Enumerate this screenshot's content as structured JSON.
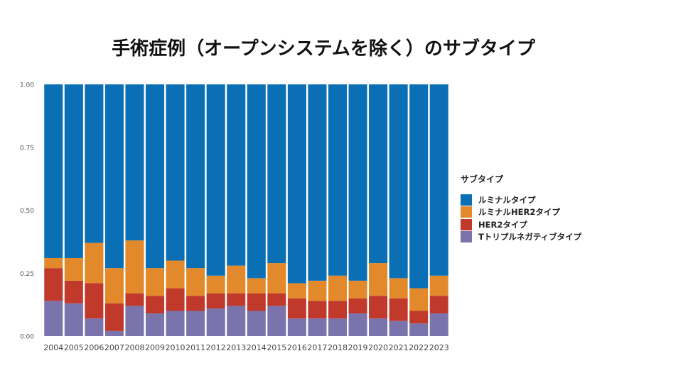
{
  "chart_data": {
    "type": "bar",
    "stacked": true,
    "title": "手術症例（オープンシステムを除く）のサブタイプ",
    "xlabel": "",
    "ylabel": "",
    "ylim": [
      0,
      1
    ],
    "yticks": [
      "0.00",
      "0.25",
      "0.50",
      "0.75",
      "1.00"
    ],
    "grid": false,
    "legend_position": "right",
    "legend_title": "サブタイプ",
    "categories": [
      "2004",
      "2005",
      "2006",
      "2007",
      "2008",
      "2009",
      "2010",
      "2011",
      "2012",
      "2013",
      "2014",
      "2015",
      "2016",
      "2017",
      "2018",
      "2019",
      "2020",
      "2021",
      "2022",
      "2023"
    ],
    "series": [
      {
        "name": "Tトリプルネガティブタイプ",
        "color": "#7b74ac",
        "values": [
          0.14,
          0.13,
          0.07,
          0.02,
          0.12,
          0.09,
          0.1,
          0.1,
          0.11,
          0.12,
          0.1,
          0.12,
          0.07,
          0.07,
          0.07,
          0.09,
          0.07,
          0.06,
          0.05,
          0.09
        ]
      },
      {
        "name": "HER2タイプ",
        "color": "#c0392b",
        "values": [
          0.13,
          0.09,
          0.14,
          0.11,
          0.05,
          0.07,
          0.09,
          0.06,
          0.06,
          0.05,
          0.07,
          0.05,
          0.08,
          0.07,
          0.07,
          0.06,
          0.09,
          0.09,
          0.05,
          0.07
        ]
      },
      {
        "name": "ルミナルHER2タイプ",
        "color": "#e28a2b",
        "values": [
          0.04,
          0.09,
          0.16,
          0.14,
          0.21,
          0.11,
          0.11,
          0.11,
          0.07,
          0.11,
          0.06,
          0.12,
          0.06,
          0.08,
          0.1,
          0.07,
          0.13,
          0.08,
          0.09,
          0.08
        ]
      },
      {
        "name": "ルミナルタイプ",
        "color": "#0a6fb4",
        "values": [
          0.69,
          0.69,
          0.63,
          0.73,
          0.62,
          0.73,
          0.7,
          0.73,
          0.76,
          0.72,
          0.77,
          0.71,
          0.79,
          0.78,
          0.76,
          0.78,
          0.71,
          0.77,
          0.81,
          0.76
        ]
      }
    ],
    "legend_order": [
      "ルミナルタイプ",
      "ルミナルHER2タイプ",
      "HER2タイプ",
      "Tトリプルネガティブタイプ"
    ]
  }
}
